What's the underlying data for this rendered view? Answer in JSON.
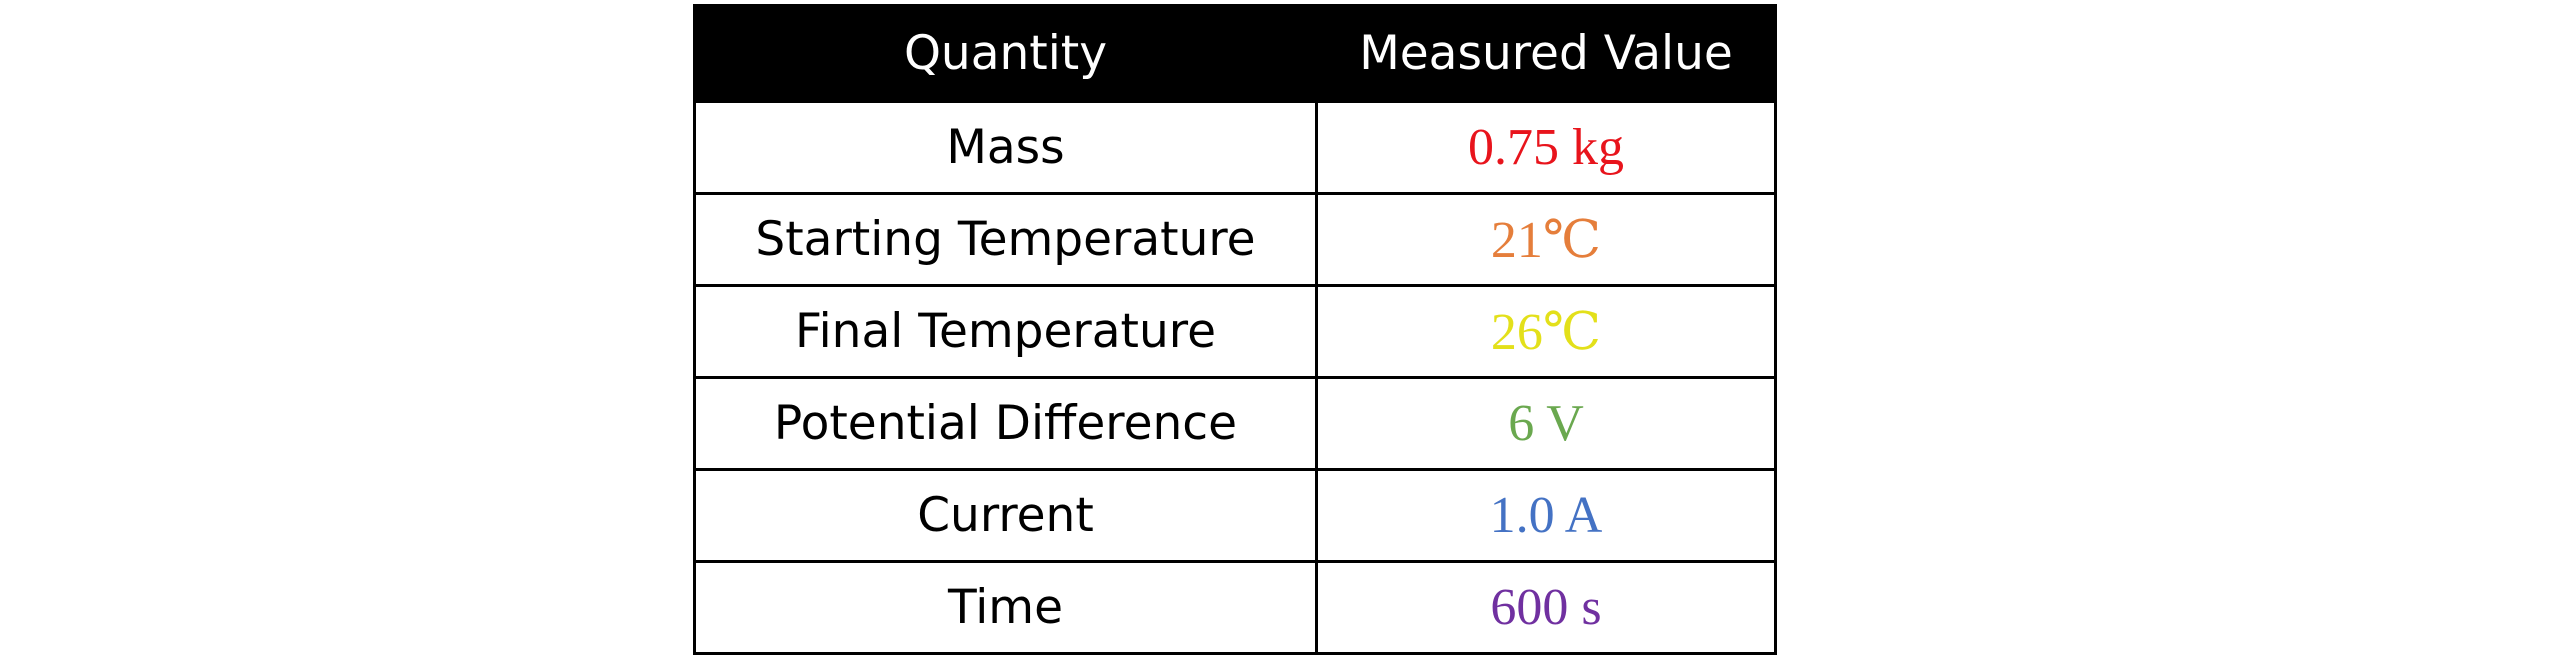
{
  "table": {
    "headers": {
      "quantity": "Quantity",
      "measured_value": "Measured Value"
    },
    "rows": [
      {
        "quantity": "Mass",
        "value": "0.75 kg",
        "color": "#e8141c"
      },
      {
        "quantity": "Starting Temperature",
        "value": "21℃",
        "color": "#e57e3b"
      },
      {
        "quantity": "Final Temperature",
        "value": "26℃",
        "color": "#e3e01a"
      },
      {
        "quantity": "Potential Difference",
        "value": "6 V",
        "color": "#6aa84f"
      },
      {
        "quantity": "Current",
        "value": "1.0 A",
        "color": "#4472c4"
      },
      {
        "quantity": "Time",
        "value": "600 s",
        "color": "#7030a0"
      }
    ]
  }
}
